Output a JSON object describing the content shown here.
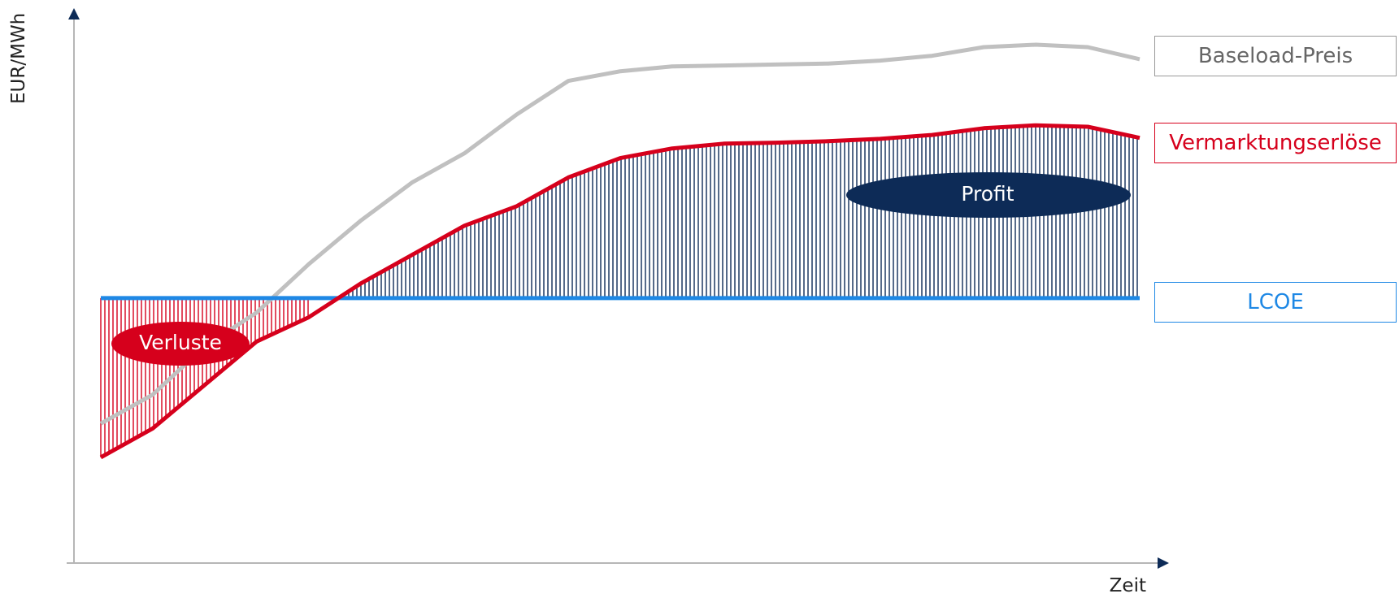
{
  "chart_data": {
    "type": "line",
    "title": "",
    "xlabel": "Zeit",
    "ylabel": "EUR/MWh",
    "x": [
      0,
      1,
      2,
      3,
      4,
      5,
      6,
      7,
      8,
      9,
      10,
      11,
      12,
      13,
      14,
      15,
      16,
      17,
      18,
      19,
      20
    ],
    "series": [
      {
        "name": "Baseload-Preis",
        "color": "#c0c0c0",
        "values": [
          0.22,
          0.28,
          0.38,
          0.45,
          0.55,
          0.64,
          0.72,
          0.78,
          0.86,
          0.93,
          0.95,
          0.96,
          0.962,
          0.964,
          0.966,
          0.972,
          0.982,
          1.0,
          1.005,
          1.0,
          0.975
        ]
      },
      {
        "name": "Vermarktungserlöse",
        "color": "#d6001c",
        "values": [
          0.15,
          0.21,
          0.3,
          0.39,
          0.44,
          0.51,
          0.57,
          0.63,
          0.67,
          0.73,
          0.77,
          0.79,
          0.8,
          0.802,
          0.805,
          0.81,
          0.818,
          0.832,
          0.838,
          0.835,
          0.812
        ]
      },
      {
        "name": "LCOE",
        "color": "#1e88e5",
        "values": [
          0.48,
          0.48,
          0.48,
          0.48,
          0.48,
          0.48,
          0.48,
          0.48,
          0.48,
          0.48,
          0.48,
          0.48,
          0.48,
          0.48,
          0.48,
          0.48,
          0.48,
          0.48,
          0.48,
          0.48,
          0.48
        ]
      }
    ],
    "annotations": [
      {
        "label": "Verluste",
        "color": "#d6001c"
      },
      {
        "label": "Profit",
        "color": "#0d2b57"
      }
    ],
    "grid": false,
    "legend_placement": "right"
  }
}
